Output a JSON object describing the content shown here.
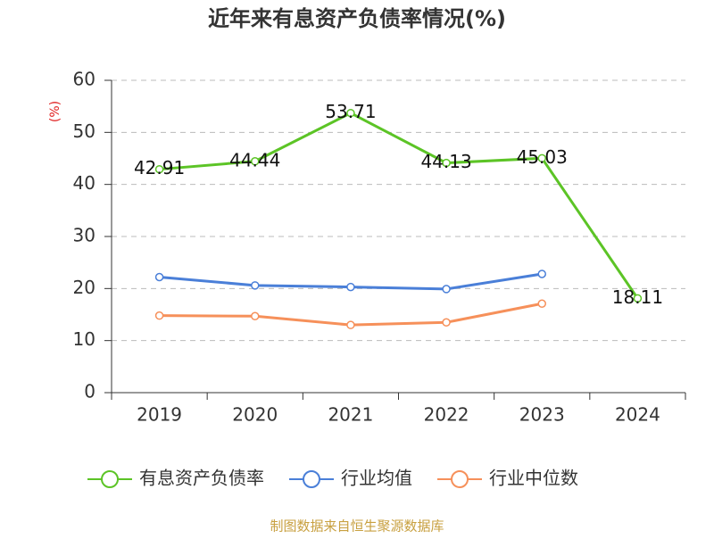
{
  "chart_data": {
    "type": "line",
    "title": "近年来有息资产负债率情况(%)",
    "y_label": "(%)",
    "categories": [
      "2019",
      "2020",
      "2021",
      "2022",
      "2023",
      "2024"
    ],
    "series": [
      {
        "name": "有息资产负债率",
        "color": "#5cc426",
        "values": [
          42.91,
          44.44,
          53.71,
          44.13,
          45.03,
          18.11
        ],
        "show_labels": true
      },
      {
        "name": "行业均值",
        "color": "#4a7fd8",
        "values": [
          22.2,
          20.6,
          20.3,
          19.9,
          22.8,
          null
        ]
      },
      {
        "name": "行业中位数",
        "color": "#f6905a",
        "values": [
          14.8,
          14.7,
          13.0,
          13.5,
          17.1,
          null
        ]
      }
    ],
    "ylim": [
      0,
      60
    ],
    "yticks": [
      0,
      10,
      20,
      30,
      40,
      50,
      60
    ],
    "grid": true,
    "source": "制图数据来自恒生聚源数据库"
  }
}
